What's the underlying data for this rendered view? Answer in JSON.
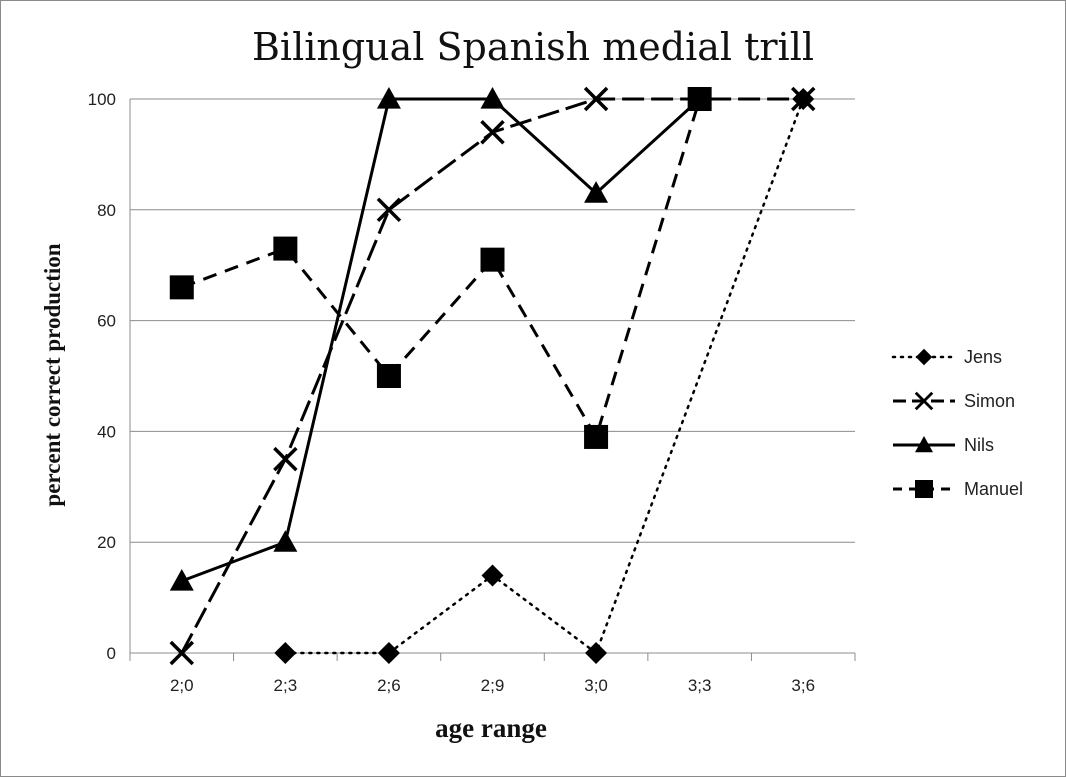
{
  "chart_data": {
    "type": "line",
    "title": "Bilingual Spanish medial trill",
    "xlabel": "age range",
    "ylabel": "percent correct production",
    "categories": [
      "2;0",
      "2;3",
      "2;6",
      "2;9",
      "3;0",
      "3;3",
      "3;6"
    ],
    "yticks": [
      0,
      20,
      40,
      60,
      80,
      100
    ],
    "ylim": [
      0,
      100
    ],
    "grid": true,
    "legend_position": "right",
    "series": [
      {
        "name": "Jens",
        "marker": "diamond",
        "dash": "dotted",
        "values": [
          null,
          0,
          0,
          14,
          0,
          null,
          100
        ]
      },
      {
        "name": "Simon",
        "marker": "x",
        "dash": "longdash",
        "values": [
          0,
          35,
          80,
          94,
          100,
          null,
          100
        ]
      },
      {
        "name": "Nils",
        "marker": "triangle",
        "dash": "solid",
        "values": [
          13,
          20,
          100,
          100,
          83,
          100,
          null
        ]
      },
      {
        "name": "Manuel",
        "marker": "square",
        "dash": "dashed",
        "values": [
          66,
          73,
          50,
          71,
          39,
          100,
          null
        ]
      }
    ]
  }
}
